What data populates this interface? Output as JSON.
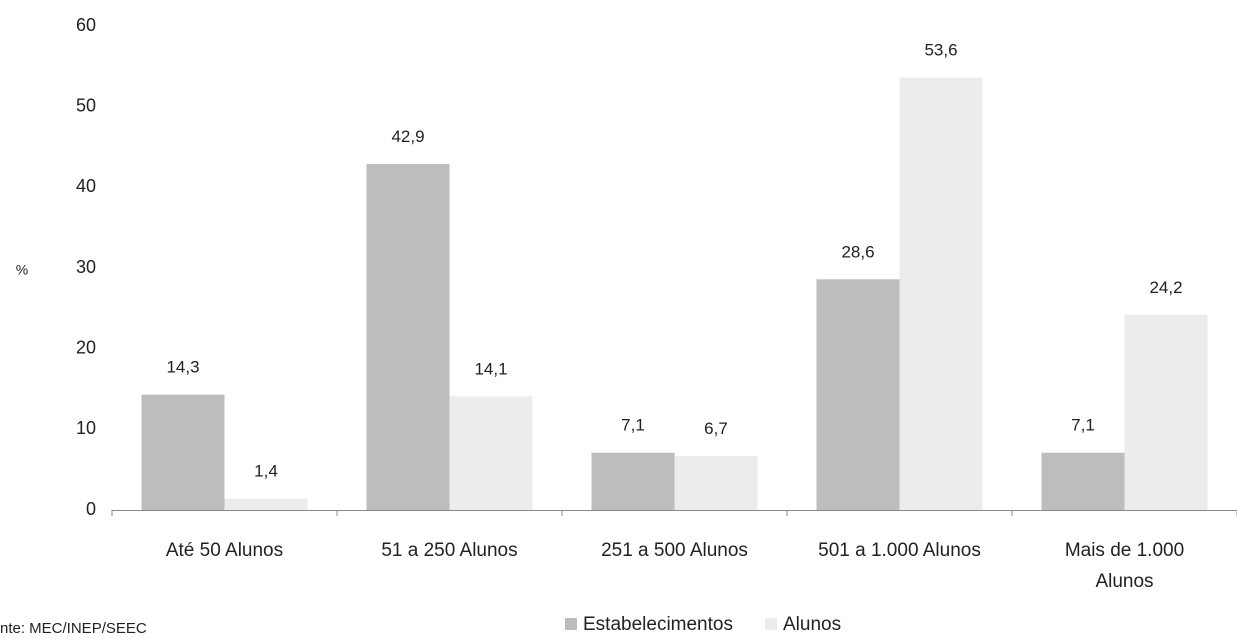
{
  "chart_data": {
    "type": "bar",
    "title": "",
    "xlabel": "",
    "ylabel": "%",
    "ylim": [
      0,
      60
    ],
    "yticks": [
      "0",
      "10",
      "20",
      "30",
      "40",
      "50",
      "60"
    ],
    "grid": false,
    "legend_position": "bottom",
    "categories": [
      [
        "Até 50 Alunos"
      ],
      [
        "51 a 250 Alunos"
      ],
      [
        "251 a 500 Alunos"
      ],
      [
        "501 a 1.000 Alunos"
      ],
      [
        "Mais de 1.000",
        "Alunos"
      ]
    ],
    "series": [
      {
        "name": "Estabelecimentos",
        "color": "#bdbdbd",
        "values": [
          14.3,
          42.9,
          7.1,
          28.6,
          7.1
        ],
        "labels": [
          "14,3",
          "42,9",
          "7,1",
          "28,6",
          "7,1"
        ]
      },
      {
        "name": "Alunos",
        "color": "#ececec",
        "values": [
          1.4,
          14.1,
          6.7,
          53.6,
          24.2
        ],
        "labels": [
          "1,4",
          "14,1",
          "6,7",
          "53,6",
          "24,2"
        ]
      }
    ],
    "source": "nte: MEC/INEP/SEEC"
  }
}
